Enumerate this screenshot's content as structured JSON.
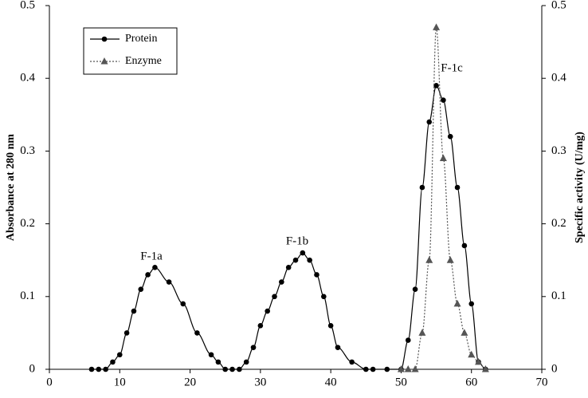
{
  "chart_data": {
    "type": "line",
    "y_label": "Absorbance at 280 nm",
    "y2_label": "Specific activity (U/mg)",
    "annotations": [
      "F-1a",
      "F-1b",
      "F-1c"
    ],
    "xlim": [
      0,
      70
    ],
    "xticks": [
      0,
      10,
      20,
      30,
      40,
      50,
      60,
      70
    ],
    "ylim": [
      0,
      0.5
    ],
    "yticks": [
      0,
      0.1,
      0.2,
      0.3,
      0.4,
      0.5
    ],
    "y2lim": [
      0,
      0.5
    ],
    "y2ticks": [
      0,
      0.1,
      0.2,
      0.3,
      0.4,
      0.5
    ],
    "series": [
      {
        "name": "Protein",
        "color": "#000000",
        "marker": "circle",
        "dash": "solid",
        "x": [
          6,
          7,
          8,
          9,
          10,
          11,
          12,
          13,
          14,
          15,
          17,
          19,
          21,
          23,
          24,
          25,
          26,
          27,
          28,
          29,
          30,
          31,
          32,
          33,
          34,
          35,
          36,
          37,
          38,
          39,
          40,
          41,
          43,
          45,
          46,
          48,
          50,
          51,
          52,
          53,
          54,
          55,
          56,
          57,
          58,
          59,
          60,
          61,
          62
        ],
        "values": [
          0,
          0,
          0,
          0.01,
          0.02,
          0.05,
          0.08,
          0.11,
          0.13,
          0.14,
          0.12,
          0.09,
          0.05,
          0.02,
          0.01,
          0,
          0,
          0,
          0.01,
          0.03,
          0.06,
          0.08,
          0.1,
          0.12,
          0.14,
          0.15,
          0.16,
          0.15,
          0.13,
          0.1,
          0.06,
          0.03,
          0.01,
          0,
          0,
          0,
          0,
          0.04,
          0.11,
          0.25,
          0.34,
          0.39,
          0.37,
          0.32,
          0.25,
          0.17,
          0.09,
          0.01,
          0
        ]
      },
      {
        "name": "Enzyme",
        "color": "#555555",
        "marker": "triangle",
        "dash": "dotted",
        "axis": "y2",
        "x": [
          50,
          51,
          52,
          53,
          54,
          55,
          56,
          57,
          58,
          59,
          60,
          61,
          62
        ],
        "values": [
          0,
          0,
          0,
          0.05,
          0.15,
          0.47,
          0.29,
          0.15,
          0.09,
          0.05,
          0.02,
          0.01,
          0
        ]
      }
    ]
  }
}
